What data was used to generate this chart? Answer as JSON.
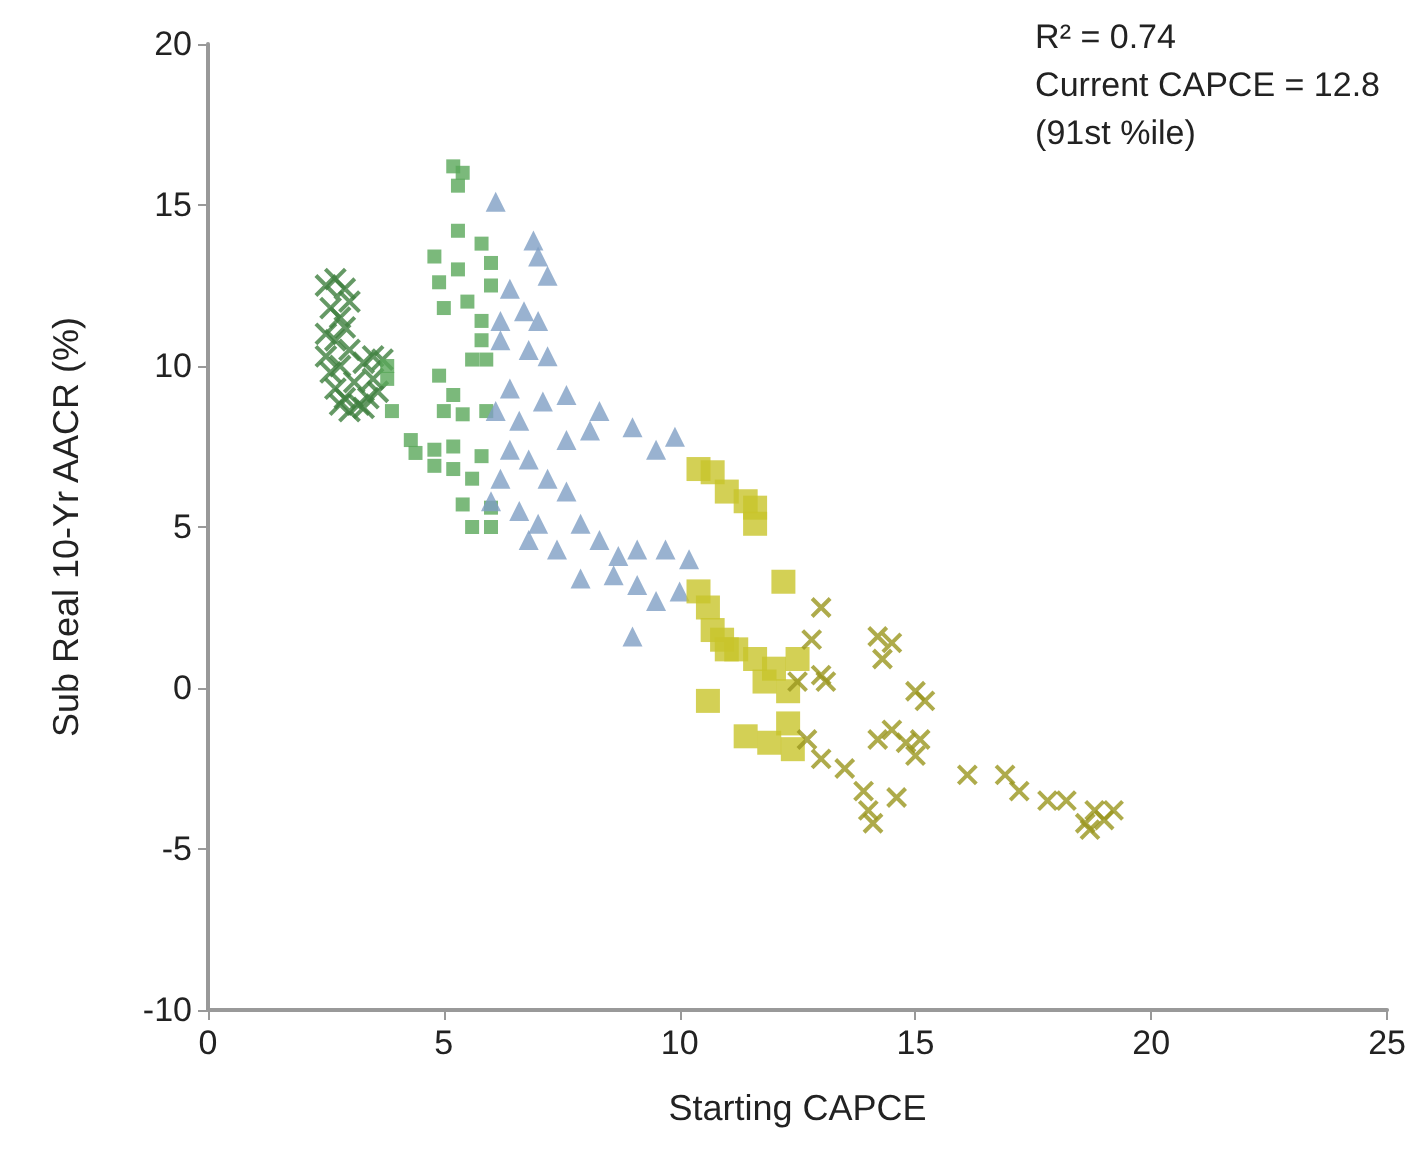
{
  "chart_data": {
    "type": "scatter",
    "xlabel": "Starting CAPCE",
    "ylabel": "Sub Real 10-Yr AACR (%)",
    "annotations": [
      "R² = 0.74",
      "Current CAPCE = 12.8",
      "(91st %ile)"
    ],
    "xlim": [
      0,
      25
    ],
    "xticks": [
      0,
      5,
      10,
      15,
      20,
      25
    ],
    "ylim": [
      -10,
      20
    ],
    "yticks": [
      -10,
      -5,
      0,
      5,
      10,
      15,
      20
    ],
    "grid": false,
    "series": [
      {
        "color": "#3f7f3f",
        "marker": "cross",
        "x": [
          2.5,
          2.7,
          2.9,
          2.6,
          2.8,
          3.0,
          2.5,
          2.7,
          2.9,
          2.5,
          2.6,
          2.8,
          3.0,
          2.7,
          2.9,
          3.1,
          3.2,
          3.4,
          3.5,
          3.5,
          3.3,
          3.7,
          3.6,
          3.0,
          2.8,
          3.3
        ],
        "values": [
          12.5,
          12.7,
          12.4,
          11.8,
          11.5,
          12.0,
          11.0,
          10.8,
          11.2,
          10.3,
          9.8,
          10.0,
          10.5,
          9.3,
          9.0,
          9.5,
          8.8,
          9.0,
          9.6,
          10.3,
          10.1,
          10.2,
          9.2,
          8.6,
          8.8,
          8.7
        ]
      },
      {
        "color": "#5aa75a",
        "marker": "square",
        "x": [
          5.2,
          5.4,
          5.3,
          5.3,
          5.8,
          6.0,
          4.8,
          5.3,
          4.9,
          5.5,
          6.0,
          5.0,
          5.8,
          5.8,
          5.6,
          5.9,
          4.9,
          5.2,
          5.0,
          5.4,
          5.9,
          3.8,
          3.8,
          3.9,
          4.3,
          4.4,
          4.8,
          4.8,
          5.2,
          5.2,
          5.6,
          5.8,
          5.4,
          5.6,
          6.0,
          6.0
        ],
        "values": [
          16.2,
          16.0,
          15.6,
          14.2,
          13.8,
          13.2,
          13.4,
          13.0,
          12.6,
          12.0,
          12.5,
          11.8,
          11.4,
          10.8,
          10.2,
          10.2,
          9.7,
          9.1,
          8.6,
          8.5,
          8.6,
          10.0,
          9.6,
          8.6,
          7.7,
          7.3,
          7.4,
          6.9,
          7.5,
          6.8,
          6.5,
          7.2,
          5.7,
          5.0,
          5.0,
          5.6
        ]
      },
      {
        "color": "#7f9fc4",
        "marker": "triangle",
        "x": [
          6.1,
          6.9,
          7.0,
          7.2,
          6.4,
          6.7,
          6.2,
          7.0,
          6.8,
          6.2,
          7.2,
          6.4,
          7.1,
          7.6,
          8.3,
          9.0,
          9.5,
          9.9,
          6.6,
          6.4,
          6.8,
          6.2,
          7.2,
          7.6,
          6.6,
          7.0,
          7.9,
          6.8,
          7.4,
          8.3,
          8.7,
          9.1,
          9.7,
          10.2,
          7.9,
          8.6,
          9.1,
          9.0,
          9.5,
          10.0,
          6.0,
          6.1,
          8.1,
          7.6
        ],
        "values": [
          15.1,
          13.9,
          13.4,
          12.8,
          12.4,
          11.7,
          11.4,
          11.4,
          10.5,
          10.8,
          10.3,
          9.3,
          8.9,
          9.1,
          8.6,
          8.1,
          7.4,
          7.8,
          8.3,
          7.4,
          7.1,
          6.5,
          6.5,
          6.1,
          5.5,
          5.1,
          5.1,
          4.6,
          4.3,
          4.6,
          4.1,
          4.3,
          4.3,
          4.0,
          3.4,
          3.5,
          3.2,
          1.6,
          2.7,
          3.0,
          5.8,
          8.6,
          8.0,
          7.7
        ]
      },
      {
        "color": "#c8c42a",
        "marker": "square",
        "x": [
          10.4,
          10.7,
          11.0,
          11.4,
          11.6,
          11.6,
          12.2,
          10.4,
          10.6,
          10.7,
          10.9,
          11.2,
          11.6,
          12.0,
          12.5,
          11.8,
          10.6,
          11.4,
          11.9,
          12.3,
          12.4,
          11.0,
          12.3
        ],
        "values": [
          6.8,
          6.7,
          6.1,
          5.8,
          5.6,
          5.1,
          3.3,
          3.0,
          2.5,
          1.8,
          1.5,
          1.2,
          0.9,
          0.6,
          0.9,
          0.2,
          -0.4,
          -1.5,
          -1.7,
          -1.1,
          -1.9,
          1.2,
          -0.1
        ]
      },
      {
        "color": "#9a961e",
        "marker": "cross",
        "x": [
          13.0,
          12.8,
          12.5,
          13.0,
          13.1,
          14.2,
          14.5,
          14.3,
          15.0,
          15.2,
          12.7,
          13.0,
          13.5,
          13.9,
          14.0,
          14.1,
          14.2,
          14.5,
          14.8,
          15.0,
          15.1,
          14.6,
          16.1,
          16.9,
          17.2,
          17.8,
          18.2,
          18.6,
          18.8,
          19.0,
          19.2,
          18.7
        ],
        "values": [
          2.5,
          1.5,
          0.2,
          0.4,
          0.2,
          1.6,
          1.4,
          0.9,
          -0.1,
          -0.4,
          -1.6,
          -2.2,
          -2.5,
          -3.2,
          -3.8,
          -4.2,
          -1.6,
          -1.3,
          -1.7,
          -2.1,
          -1.6,
          -3.4,
          -2.7,
          -2.7,
          -3.2,
          -3.5,
          -3.5,
          -4.2,
          -3.8,
          -4.1,
          -3.8,
          -4.4
        ]
      }
    ]
  }
}
